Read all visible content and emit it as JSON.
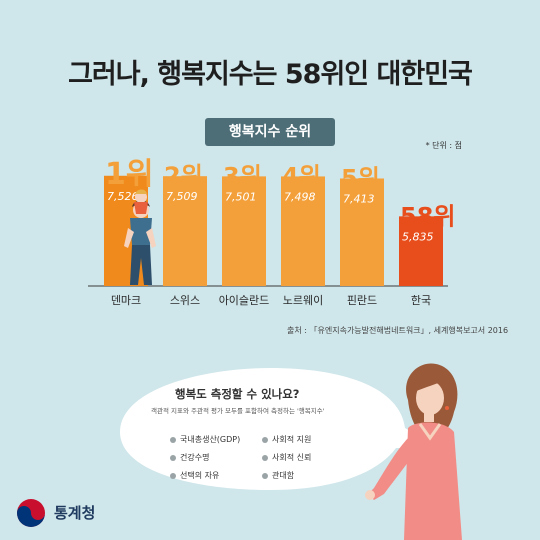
{
  "title": "그러나, 행복지수는 58위인 대한민국",
  "chart_data": {
    "type": "bar",
    "title": "행복지수 순위",
    "unit_note": "* 단위 : 점",
    "categories": [
      "덴마크",
      "스위스",
      "아이슬란드",
      "노르웨이",
      "핀란드",
      "한국"
    ],
    "values": [
      7.526,
      7.509,
      7.501,
      7.498,
      7.413,
      5.835
    ],
    "value_labels": [
      "7,526",
      "7,509",
      "7,501",
      "7,498",
      "7,413",
      "5,835"
    ],
    "rank_labels": [
      "1위",
      "2위",
      "3위",
      "4위",
      "5위",
      "58위"
    ],
    "bar_colors": [
      "#f08a1c",
      "#f3a03a",
      "#f3a03a",
      "#f3a03a",
      "#f3a03a",
      "#e84e1b"
    ],
    "rank_colors": [
      "#f3a03a",
      "#f3a03a",
      "#f3a03a",
      "#f3a03a",
      "#f3a03a",
      "#e84e1b"
    ]
  },
  "source": "출처 : 「유엔지속가능발전해법네트워크」, 세계행복보고서 2016",
  "bubble": {
    "question": "행복도 측정할 수 있나요?",
    "explanation": "객관적 지표와 주관적 평가 모두를 포함하여 측정하는 '행복지수'",
    "indicators": [
      "국내총생산(GDP)",
      "사회적 지원",
      "건강수명",
      "사회적 신뢰",
      "선택의 자유",
      "관대함"
    ]
  },
  "logo": {
    "name": "통계청",
    "icon": "taegeuk-icon"
  }
}
